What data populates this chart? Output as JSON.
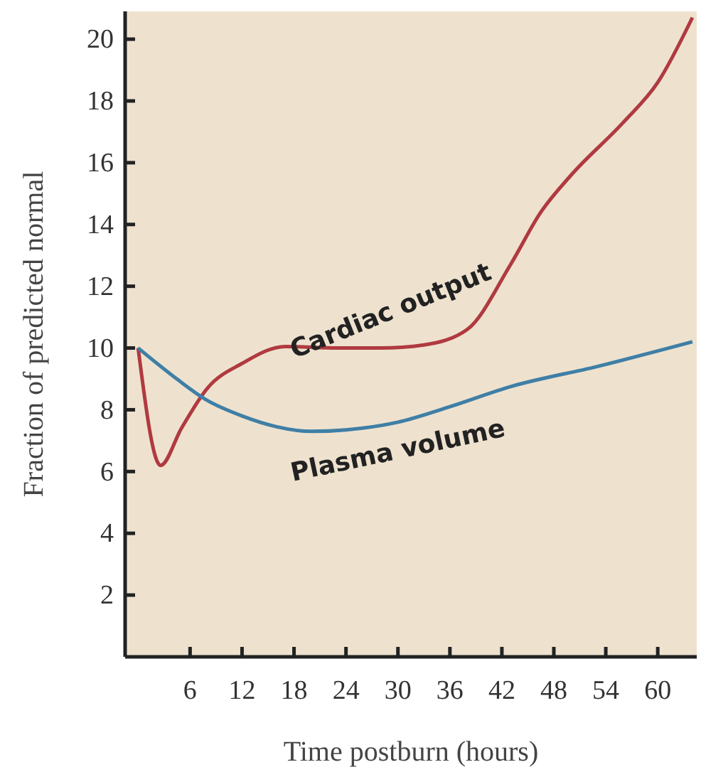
{
  "chart_data": {
    "type": "line",
    "xlabel": "Time postburn (hours)",
    "ylabel": "Fraction of predicted normal",
    "xlim": [
      -1.5,
      64.5
    ],
    "ylim": [
      0,
      20.9
    ],
    "xticks": [
      6,
      12,
      18,
      24,
      30,
      36,
      42,
      48,
      54,
      60
    ],
    "yticks": [
      2,
      4,
      6,
      8,
      10,
      12,
      14,
      16,
      18,
      20
    ],
    "grid": false,
    "marker": "none",
    "line_style": "solid",
    "series": [
      {
        "name": "Cardiac output",
        "color": "#b03a40",
        "x": [
          0,
          2.6,
          5,
          8,
          12,
          17,
          23,
          28,
          33,
          38,
          43,
          46.5,
          50,
          56,
          60,
          64
        ],
        "values": [
          10,
          6.2,
          7.4,
          8.7,
          9.5,
          10.05,
          10,
          10,
          10.1,
          10.6,
          12.7,
          14.4,
          15.6,
          17.3,
          18.6,
          20.7
        ]
      },
      {
        "name": "Plasma volume",
        "color": "#3f7fa6",
        "x": [
          0,
          4,
          8,
          12,
          16,
          20,
          24,
          30,
          36,
          43,
          53,
          64
        ],
        "values": [
          10,
          9.1,
          8.3,
          7.8,
          7.45,
          7.3,
          7.35,
          7.6,
          8.1,
          8.75,
          9.4,
          10.2
        ]
      }
    ]
  }
}
